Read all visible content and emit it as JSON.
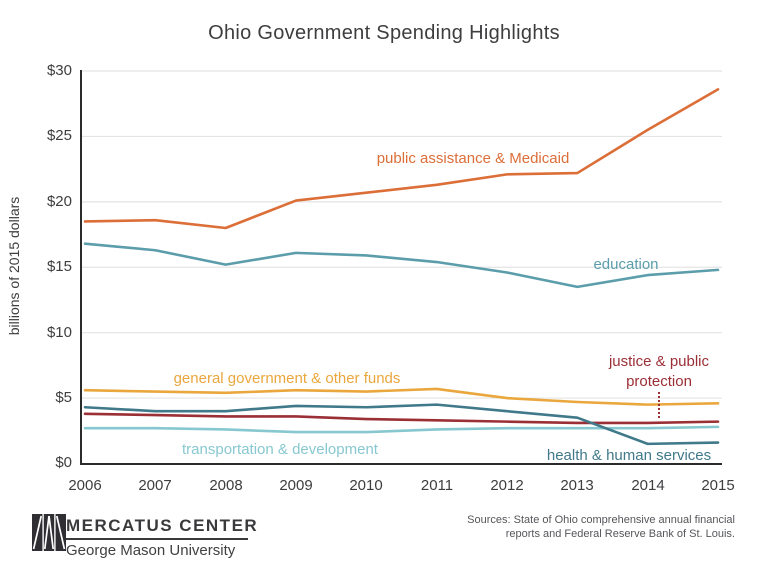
{
  "title": "Ohio Government Spending Highlights",
  "y_axis": {
    "label": "billions of 2015 dollars",
    "ticks": [
      "$0",
      "$5",
      "$10",
      "$15",
      "$20",
      "$25",
      "$30"
    ]
  },
  "x_axis": {
    "ticks": [
      "2006",
      "2007",
      "2008",
      "2009",
      "2010",
      "2011",
      "2012",
      "2013",
      "2014",
      "2015"
    ]
  },
  "chart_data": {
    "type": "line",
    "title": "Ohio Government Spending Highlights",
    "xlabel": "",
    "ylabel": "billions of 2015 dollars",
    "x": [
      2006,
      2007,
      2008,
      2009,
      2010,
      2011,
      2012,
      2013,
      2014,
      2015
    ],
    "ylim": [
      0,
      30
    ],
    "grid": "horizontal",
    "legend_position": "inline-labels",
    "colors": {
      "grid": "#e4e4e4",
      "axis": "#2b2b2b"
    },
    "series": [
      {
        "name": "transportation & development",
        "color": "#87c8d0",
        "values": [
          2.7,
          2.7,
          2.6,
          2.4,
          2.4,
          2.6,
          2.7,
          2.7,
          2.7,
          2.8
        ]
      },
      {
        "name": "justice & public protection",
        "color": "#9b2f36",
        "values": [
          3.8,
          3.7,
          3.6,
          3.6,
          3.4,
          3.3,
          3.2,
          3.1,
          3.1,
          3.2
        ]
      },
      {
        "name": "general government & other funds",
        "color": "#eaa73d",
        "values": [
          5.6,
          5.5,
          5.4,
          5.6,
          5.5,
          5.7,
          5.0,
          4.7,
          4.5,
          4.6
        ]
      },
      {
        "name": "health & human services",
        "color": "#40798a",
        "values": [
          4.3,
          4.0,
          4.0,
          4.4,
          4.3,
          4.5,
          4.0,
          3.5,
          1.5,
          1.6
        ]
      },
      {
        "name": "education",
        "color": "#5b9daa",
        "values": [
          16.8,
          16.3,
          15.2,
          16.1,
          15.9,
          15.4,
          14.6,
          13.5,
          14.4,
          14.8
        ]
      },
      {
        "name": "public assistance & Medicaid",
        "color": "#dc6e38",
        "values": [
          18.5,
          18.6,
          18.0,
          20.1,
          20.7,
          21.3,
          22.1,
          22.2,
          25.5,
          28.6
        ]
      }
    ]
  },
  "footer": {
    "org_name": "MERCATUS CENTER",
    "org_sub": "George Mason University",
    "sources_line1": "Sources: State of Ohio comprehensive annual financial",
    "sources_line2": "reports and Federal Reserve Bank of St. Louis."
  }
}
